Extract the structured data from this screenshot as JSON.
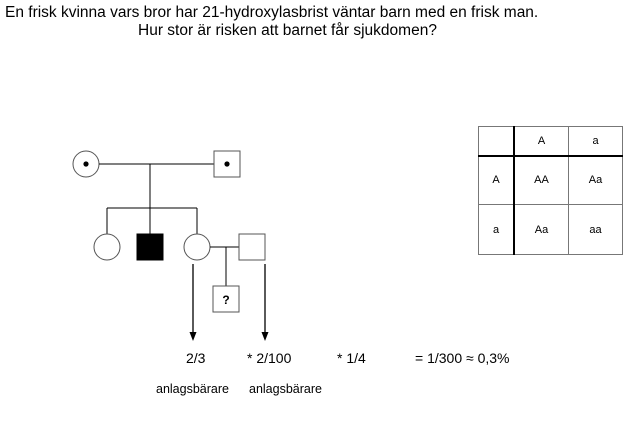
{
  "title": {
    "line1": "En frisk kvinna vars bror har 21-hydroxylasbrist väntar barn med en frisk man.",
    "line2": "Hur stor är risken att barnet får sjukdomen?"
  },
  "pedigree": {
    "unknown_child_label": "?"
  },
  "calculation": {
    "term1": "2/3",
    "term2": "* 2/100",
    "term3": "* 1/4",
    "result": "= 1/300 ≈ 0,3%",
    "carrier_label_1": "anlagsbärare",
    "carrier_label_2": "anlagsbärare"
  },
  "punnett": {
    "col_headers": [
      "A",
      "a"
    ],
    "row_headers": [
      "A",
      "a"
    ],
    "cells": [
      [
        "AA",
        "Aa"
      ],
      [
        "Aa",
        "aa"
      ]
    ]
  },
  "colors": {
    "line": "#000000",
    "shape_stroke": "#555555",
    "affected_fill": "#000000",
    "background": "#ffffff"
  }
}
